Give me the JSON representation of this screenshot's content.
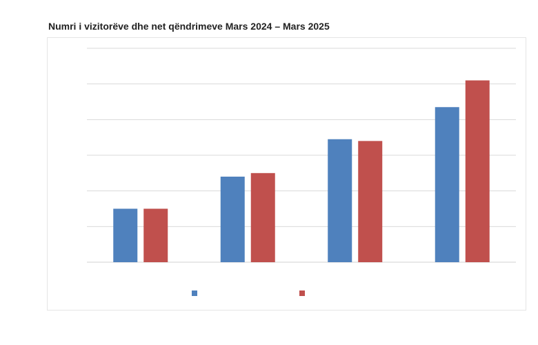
{
  "title": "Numri i vizitorëve dhe net qëndrimeve Mars 2024 – Mars 2025",
  "colors": {
    "series_1": "#4f81bd",
    "series_2": "#c0504d",
    "grid": "#d9d9d9",
    "frame": "#e4e4e4"
  },
  "chart_data": {
    "type": "bar",
    "categories": [
      "",
      "",
      "",
      ""
    ],
    "series": [
      {
        "values": [
          1.5,
          2.4,
          3.45,
          4.35
        ]
      },
      {
        "values": [
          1.5,
          2.5,
          3.4,
          5.1
        ]
      }
    ],
    "ylim": [
      0,
      6
    ],
    "grid": true,
    "legend": "bottom-center",
    "xlabel": "",
    "ylabel": ""
  }
}
